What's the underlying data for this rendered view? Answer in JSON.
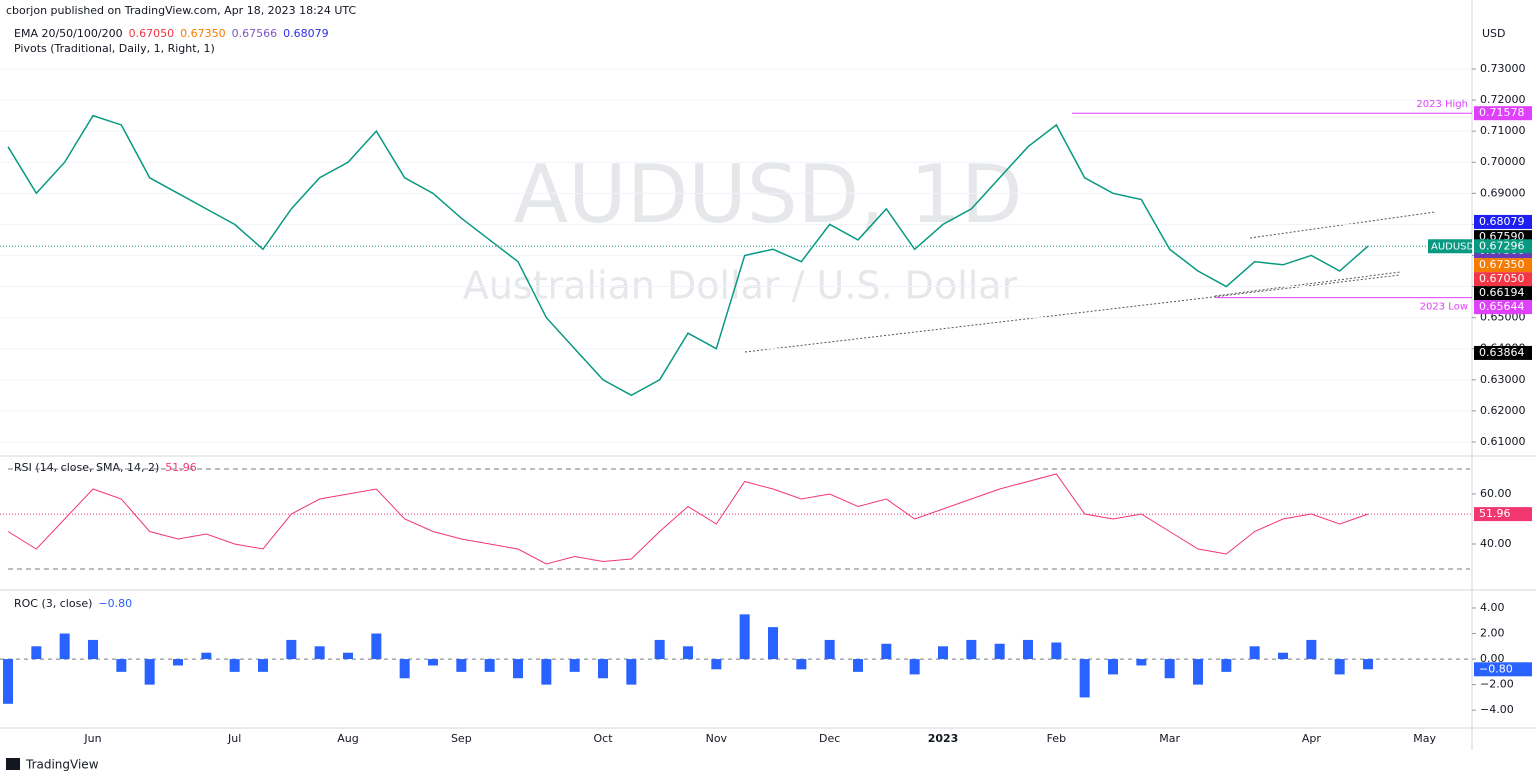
{
  "header": {
    "published": "cborjon published on TradingView.com, Apr 18, 2023 18:24 UTC",
    "ema_legend": {
      "name": "EMA 20/50/100/200",
      "values": [
        {
          "value": 0.6705,
          "label": "0.67050",
          "color": "#f23645"
        },
        {
          "value": 0.6735,
          "label": "0.67350",
          "color": "#f57c00"
        },
        {
          "value": 0.67566,
          "label": "0.67566",
          "color": "#7e57c2"
        },
        {
          "value": 0.68079,
          "label": "0.68079",
          "color": "#2f2fe8"
        }
      ]
    },
    "pivots": "Pivots (Traditional, Daily, 1, Right, 1)",
    "currency": "USD"
  },
  "chart_data": [
    {
      "type": "line",
      "title": "AUDUSD, 1D",
      "subtitle": "Australian Dollar / U.S. Dollar",
      "categories": [
        null,
        null,
        null,
        "Jun",
        null,
        null,
        null,
        null,
        "Jul",
        null,
        null,
        null,
        "Aug",
        null,
        null,
        null,
        "Sep",
        null,
        null,
        null,
        null,
        "Oct",
        null,
        null,
        null,
        "Nov",
        null,
        null,
        null,
        "Dec",
        null,
        null,
        null,
        "2023",
        null,
        null,
        null,
        "Feb",
        null,
        null,
        null,
        "Mar",
        null,
        null,
        null,
        null,
        "Apr",
        null,
        null,
        null,
        "May"
      ],
      "series": [
        {
          "name": "AUDUSD",
          "color": "#089981",
          "values": [
            0.705,
            0.69,
            0.7,
            0.715,
            0.712,
            0.695,
            0.69,
            0.685,
            0.68,
            0.672,
            0.685,
            0.695,
            0.7,
            0.71,
            0.695,
            0.69,
            0.682,
            0.675,
            0.668,
            0.65,
            0.64,
            0.63,
            0.625,
            0.63,
            0.645,
            0.64,
            0.67,
            0.672,
            0.668,
            0.68,
            0.675,
            0.685,
            0.672,
            0.68,
            0.685,
            0.695,
            0.705,
            0.712,
            0.695,
            0.69,
            0.688,
            0.672,
            0.665,
            0.66,
            0.668,
            0.667,
            0.67,
            0.665,
            0.673,
            null,
            null
          ],
          "last_price": {
            "value": 0.67296,
            "label": "0.67296"
          }
        }
      ],
      "ylim": [
        0.6058,
        0.7522
      ],
      "yticks": [
        {
          "value": 0.61,
          "label": "0.61000"
        },
        {
          "value": 0.62,
          "label": "0.62000"
        },
        {
          "value": 0.63,
          "label": "0.63000"
        },
        {
          "value": 0.64,
          "label": "0.64000"
        },
        {
          "value": 0.65,
          "label": "0.65000"
        },
        {
          "value": 0.66,
          "label": "0.66000"
        },
        {
          "value": 0.67,
          "label": "0.67000"
        },
        {
          "value": 0.68,
          "label": "0.68000"
        },
        {
          "value": 0.69,
          "label": "0.69000"
        },
        {
          "value": 0.7,
          "label": "0.70000"
        },
        {
          "value": 0.71,
          "label": "0.71000"
        },
        {
          "value": 0.72,
          "label": "0.72000"
        },
        {
          "value": 0.73,
          "label": "0.73000"
        }
      ],
      "grid": true,
      "price_labels": [
        {
          "value": 0.71578,
          "label": "0.71578",
          "color": "#e040fb",
          "note": "2023 High"
        },
        {
          "value": 0.68079,
          "label": "0.68079",
          "color": "#1e1ef0"
        },
        {
          "value": 0.6759,
          "label": "0.67590",
          "color": "#000000"
        },
        {
          "value": 0.67566,
          "label": "0.67566",
          "color": "#673ab7"
        },
        {
          "value": 0.6735,
          "label": "0.67350",
          "color": "#f57c00"
        },
        {
          "value": 0.6705,
          "label": "0.67050",
          "color": "#f23645"
        },
        {
          "value": 0.66194,
          "label": "0.66194",
          "color": "#000000"
        },
        {
          "value": 0.65644,
          "label": "0.65644",
          "color": "#e040fb",
          "note": "2023 Low"
        },
        {
          "value": 0.63864,
          "label": "0.63864",
          "color": "#000000"
        }
      ]
    },
    {
      "type": "line",
      "title": "RSI (14, close, SMA, 14, 2)",
      "color": "#f23670",
      "values": [
        45,
        38,
        50,
        62,
        58,
        45,
        42,
        44,
        40,
        38,
        52,
        58,
        60,
        62,
        50,
        45,
        42,
        40,
        38,
        32,
        35,
        33,
        34,
        45,
        55,
        48,
        65,
        62,
        58,
        60,
        55,
        58,
        50,
        54,
        58,
        62,
        65,
        68,
        52,
        50,
        52,
        45,
        38,
        36,
        45,
        50,
        52,
        48,
        51.96,
        null,
        null
      ],
      "current": 51.96,
      "ylim": [
        22.4,
        74.4
      ],
      "bands": [
        70,
        30
      ],
      "yticks": [
        {
          "value": 40,
          "label": "40.00"
        },
        {
          "value": 60,
          "label": "60.00"
        }
      ]
    },
    {
      "type": "bar",
      "title": "ROC (3, close)",
      "color": "#2962ff",
      "values": [
        -3.5,
        1,
        2,
        1.5,
        -1,
        -2,
        -0.5,
        0.5,
        -1,
        -1,
        1.5,
        1,
        0.5,
        2,
        -1.5,
        -0.5,
        -1,
        -1,
        -1.5,
        -2,
        -1,
        -1.5,
        -2,
        1.5,
        1,
        -0.8,
        3.5,
        2.5,
        -0.8,
        1.5,
        -1,
        1.2,
        -1.2,
        1,
        1.5,
        1.2,
        1.5,
        1.3,
        -3,
        -1.2,
        -0.5,
        -1.5,
        -2,
        -1,
        1,
        0.5,
        1.5,
        -1.2,
        -0.8,
        null,
        null
      ],
      "current": {
        "value": -0.8,
        "label": "−0.80"
      },
      "ylim": [
        -5.55,
        5.25
      ],
      "yticks": [
        {
          "value": -4,
          "label": "−4.00"
        },
        {
          "value": -2,
          "label": "−2.00"
        },
        {
          "value": 0,
          "label": "0.00"
        },
        {
          "value": 2,
          "label": "2.00"
        },
        {
          "value": 4,
          "label": "4.00"
        }
      ]
    }
  ],
  "footer": "TradingView"
}
